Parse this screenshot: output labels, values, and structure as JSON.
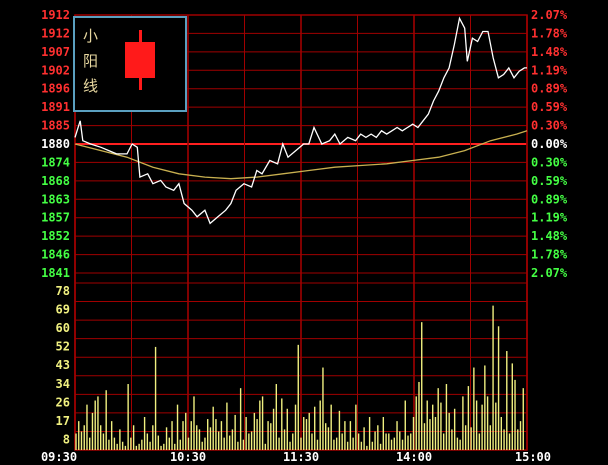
{
  "legend": {
    "text": "小阳线",
    "candle_color": "#ff1a1a"
  },
  "colors": {
    "background": "#000000",
    "grid": "#a00000",
    "prev_close_line": "#ff2020",
    "price_up_label": "#ff3030",
    "price_down_label": "#44ff44",
    "price_line": "#ffffff",
    "avg_line": "#c8b050",
    "volume": "#f0f080",
    "volume_label": "#f0f080",
    "time_label": "#ffffff"
  },
  "chart_data": {
    "type": "line",
    "title": "",
    "subtitle": "",
    "xlabel": "",
    "ylabel": "",
    "x_ticks": [
      "09:30",
      "10:30",
      "11:30",
      "14:00",
      "15:00"
    ],
    "price_ticks": [
      "1912",
      "1912",
      "1907",
      "1902",
      "1896",
      "1891",
      "1885",
      "1880",
      "1874",
      "1868",
      "1863",
      "1857",
      "1852",
      "1846",
      "1841"
    ],
    "pct_ticks": [
      "2.07%",
      "1.78%",
      "1.48%",
      "1.19%",
      "0.89%",
      "0.59%",
      "0.30%",
      "0.00%",
      "0.30%",
      "0.59%",
      "0.89%",
      "1.19%",
      "1.48%",
      "1.78%",
      "2.07%"
    ],
    "prev_close": 1880,
    "price_range": [
      1841,
      1919
    ],
    "volume_ticks": [
      "78",
      "69",
      "60",
      "52",
      "43",
      "34",
      "26",
      "17",
      "8"
    ],
    "volume_range": [
      0,
      81
    ],
    "price_series": [
      [
        0,
        1882
      ],
      [
        2,
        1887
      ],
      [
        3,
        1881
      ],
      [
        6,
        1880
      ],
      [
        10,
        1879
      ],
      [
        13,
        1878
      ],
      [
        16,
        1877
      ],
      [
        20,
        1877
      ],
      [
        22,
        1880
      ],
      [
        24,
        1879
      ],
      [
        25,
        1870
      ],
      [
        28,
        1871
      ],
      [
        30,
        1868
      ],
      [
        33,
        1869
      ],
      [
        35,
        1867
      ],
      [
        38,
        1866
      ],
      [
        40,
        1868
      ],
      [
        42,
        1862
      ],
      [
        45,
        1860
      ],
      [
        47,
        1858
      ],
      [
        50,
        1860
      ],
      [
        52,
        1856
      ],
      [
        55,
        1858
      ],
      [
        58,
        1860
      ],
      [
        60,
        1862
      ],
      [
        62,
        1866
      ],
      [
        65,
        1868
      ],
      [
        68,
        1867
      ],
      [
        70,
        1872
      ],
      [
        72,
        1871
      ],
      [
        75,
        1875
      ],
      [
        78,
        1874
      ],
      [
        80,
        1880
      ],
      [
        82,
        1876
      ],
      [
        85,
        1878
      ],
      [
        88,
        1880
      ],
      [
        90,
        1880
      ],
      [
        92,
        1885
      ],
      [
        95,
        1880
      ],
      [
        98,
        1881
      ],
      [
        100,
        1883
      ],
      [
        102,
        1880
      ],
      [
        105,
        1882
      ],
      [
        108,
        1881
      ],
      [
        110,
        1883
      ],
      [
        112,
        1882
      ],
      [
        114,
        1883
      ],
      [
        116,
        1882
      ],
      [
        118,
        1884
      ],
      [
        120,
        1883
      ],
      [
        122,
        1884
      ],
      [
        124,
        1885
      ],
      [
        126,
        1884
      ],
      [
        128,
        1885
      ],
      [
        130,
        1886
      ],
      [
        132,
        1885
      ],
      [
        134,
        1887
      ],
      [
        136,
        1889
      ],
      [
        138,
        1893
      ],
      [
        140,
        1896
      ],
      [
        142,
        1900
      ],
      [
        144,
        1903
      ],
      [
        146,
        1910
      ],
      [
        148,
        1918
      ],
      [
        150,
        1915
      ],
      [
        151,
        1905
      ],
      [
        153,
        1912
      ],
      [
        155,
        1911
      ],
      [
        157,
        1914
      ],
      [
        159,
        1914
      ],
      [
        161,
        1906
      ],
      [
        163,
        1900
      ],
      [
        165,
        1901
      ],
      [
        167,
        1903
      ],
      [
        169,
        1900
      ],
      [
        171,
        1902
      ],
      [
        173,
        1903
      ],
      [
        174,
        1903
      ]
    ],
    "avg_series": [
      [
        0,
        1880
      ],
      [
        10,
        1878
      ],
      [
        20,
        1876
      ],
      [
        30,
        1873
      ],
      [
        40,
        1871
      ],
      [
        50,
        1870
      ],
      [
        60,
        1869.5
      ],
      [
        70,
        1870
      ],
      [
        80,
        1871
      ],
      [
        90,
        1872
      ],
      [
        100,
        1873
      ],
      [
        110,
        1873.5
      ],
      [
        120,
        1874
      ],
      [
        130,
        1875
      ],
      [
        140,
        1876
      ],
      [
        150,
        1878
      ],
      [
        160,
        1881
      ],
      [
        170,
        1883
      ],
      [
        174,
        1884
      ]
    ],
    "volume_values": [
      8,
      14,
      9,
      12,
      22,
      6,
      18,
      24,
      26,
      12,
      8,
      29,
      5,
      14,
      6,
      3,
      10,
      4,
      2,
      32,
      6,
      12,
      2,
      3,
      5,
      16,
      8,
      4,
      12,
      50,
      7,
      2,
      3,
      11,
      6,
      14,
      3,
      22,
      5,
      14,
      18,
      6,
      14,
      26,
      12,
      10,
      4,
      6,
      15,
      11,
      21,
      15,
      9,
      14,
      6,
      23,
      7,
      10,
      17,
      4,
      30,
      5,
      16,
      8,
      9,
      18,
      15,
      24,
      26,
      3,
      14,
      13,
      20,
      32,
      6,
      25,
      10,
      20,
      4,
      8,
      22,
      51,
      6,
      16,
      15,
      18,
      8,
      21,
      5,
      24,
      40,
      13,
      11,
      22,
      5,
      6,
      19,
      8,
      14,
      4,
      14,
      6,
      22,
      8,
      4,
      11,
      2,
      16,
      4,
      9,
      12,
      3,
      16,
      8,
      8,
      5,
      6,
      14,
      9,
      5,
      24,
      7,
      8,
      16,
      26,
      33,
      62,
      13,
      24,
      15,
      22,
      16,
      30,
      23,
      8,
      32,
      18,
      10,
      20,
      6,
      5,
      26,
      12,
      31,
      11,
      40,
      24,
      8,
      22,
      41,
      26,
      12,
      70,
      23,
      60,
      16,
      10,
      48,
      8,
      42,
      34,
      10,
      14,
      30
    ]
  }
}
